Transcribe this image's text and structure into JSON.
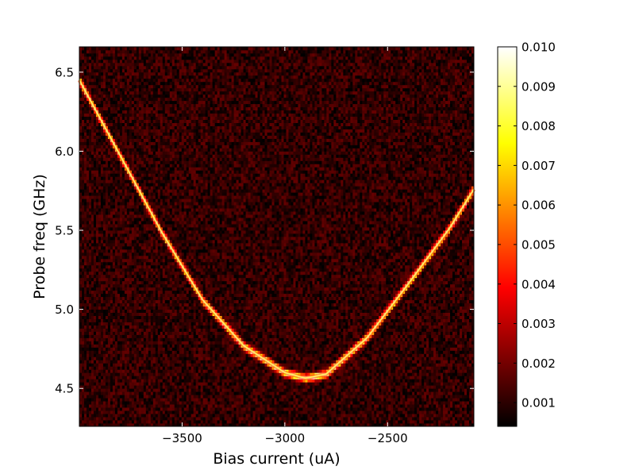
{
  "chart_data": {
    "type": "heatmap",
    "title": "",
    "xlabel": "Bias current (uA)",
    "ylabel": "Probe freq (GHz)",
    "xlim": [
      -4000,
      -2080
    ],
    "ylim": [
      4.26,
      6.66
    ],
    "xticks": [
      -3500,
      -3000,
      -2500
    ],
    "xtick_labels": [
      "−3500",
      "−3000",
      "−2500"
    ],
    "yticks": [
      4.5,
      5.0,
      5.5,
      6.0,
      6.5
    ],
    "ytick_labels": [
      "4.5",
      "5.0",
      "5.5",
      "6.0",
      "6.5"
    ],
    "colormap": "hot",
    "colorbar": {
      "range": [
        0.0004,
        0.01
      ],
      "ticks": [
        0.001,
        0.002,
        0.003,
        0.004,
        0.005,
        0.006,
        0.007,
        0.008,
        0.009,
        0.01
      ],
      "tick_labels": [
        "0.001",
        "0.002",
        "0.003",
        "0.004",
        "0.005",
        "0.006",
        "0.007",
        "0.008",
        "0.009",
        "0.010"
      ]
    },
    "resonance_trace": {
      "x": [
        -4000,
        -3800,
        -3600,
        -3400,
        -3200,
        -3000,
        -2900,
        -2800,
        -2600,
        -2400,
        -2200,
        -2080
      ],
      "y": [
        6.45,
        5.97,
        5.49,
        5.06,
        4.77,
        4.6,
        4.565,
        4.59,
        4.82,
        5.16,
        5.51,
        5.76
      ]
    },
    "background_level": 0.0012,
    "peak_level": 0.009
  }
}
